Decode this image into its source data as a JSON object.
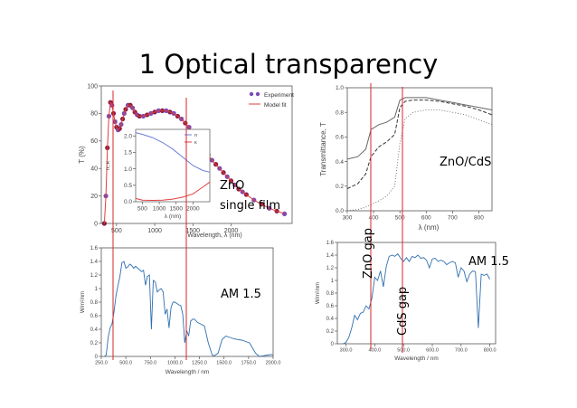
{
  "slide": {
    "title": "1 Optical transparency",
    "annotations": {
      "zno_label": "ZnO",
      "single_film": "single film",
      "am15_left": "AM 1.5",
      "zno_cds": "ZnO/CdS",
      "zno_gap": "ZnO gap",
      "cds_gap": "CdS gap",
      "am15_right": "AM 1.5"
    },
    "colors": {
      "marker": "#d62728",
      "experiment": "#7a4bb5",
      "model": "#e23c3c",
      "spectrum": "#2f6fb0"
    }
  },
  "chart_data": [
    {
      "type": "scatter",
      "id": "zno-transmittance",
      "xlabel": "Wavelength, λ (nm)",
      "ylabel": "T (%)",
      "xlim": [
        300,
        2800
      ],
      "ylim": [
        0,
        100
      ],
      "xticks": [
        "500",
        "1000",
        "1500",
        "2000"
      ],
      "yticks": [
        "0",
        "20",
        "40",
        "60",
        "80",
        "100"
      ],
      "legend": [
        "Experiment",
        "Model fit"
      ],
      "series": [
        {
          "name": "Experiment",
          "x": [
            340,
            360,
            380,
            400,
            420,
            440,
            460,
            480,
            500,
            520,
            540,
            560,
            580,
            600,
            620,
            650,
            680,
            710,
            740,
            770,
            800,
            850,
            900,
            950,
            1000,
            1050,
            1100,
            1150,
            1200,
            1250,
            1300,
            1350,
            1400,
            1450,
            1500,
            1550,
            1600,
            1650,
            1700,
            1750,
            1800,
            1850,
            1900,
            1950,
            2000,
            2050,
            2100,
            2150,
            2200,
            2300,
            2400,
            2500,
            2600,
            2700
          ],
          "y": [
            0,
            20,
            55,
            78,
            88,
            86,
            80,
            74,
            70,
            68,
            69,
            72,
            76,
            80,
            83,
            86,
            86,
            84,
            81,
            79,
            78,
            78,
            79,
            80,
            81,
            82,
            82,
            82,
            81,
            80,
            78,
            76,
            73,
            70,
            66,
            62,
            58,
            54,
            50,
            46,
            43,
            40,
            37,
            34,
            31,
            28,
            25,
            23,
            21,
            17,
            14,
            11,
            9,
            7
          ]
        },
        {
          "name": "Model fit",
          "x": [
            340,
            360,
            380,
            400,
            420,
            440,
            460,
            480,
            500,
            520,
            540,
            560,
            580,
            600,
            620,
            650,
            680,
            710,
            740,
            770,
            800,
            850,
            900,
            950,
            1000,
            1050,
            1100,
            1150,
            1200,
            1250,
            1300,
            1350,
            1400,
            1450,
            1500,
            1550,
            1600,
            1650,
            1700,
            1750,
            1800,
            1850,
            1900,
            1950,
            2000,
            2050,
            2100,
            2150,
            2200,
            2300,
            2400,
            2500,
            2600,
            2700
          ],
          "y": [
            0,
            20,
            55,
            78,
            88,
            86,
            80,
            74,
            70,
            68,
            69,
            72,
            76,
            80,
            83,
            86,
            86,
            84,
            81,
            79,
            78,
            78,
            79,
            80,
            81,
            82,
            82,
            82,
            81,
            80,
            78,
            76,
            73,
            70,
            66,
            62,
            58,
            54,
            50,
            46,
            43,
            40,
            37,
            34,
            31,
            28,
            25,
            23,
            21,
            17,
            14,
            11,
            9,
            7
          ]
        }
      ],
      "inset": {
        "xlabel": "λ (nm)",
        "ylabel": "n, κ",
        "xticks": [
          "500",
          "1000",
          "1500",
          "2000"
        ],
        "yticks": [
          "0.0",
          "0.5",
          "1.0",
          "1.5",
          "2.0"
        ],
        "legend": [
          "n",
          "κ"
        ],
        "xlim": [
          300,
          2500
        ],
        "ylim": [
          0,
          2.2
        ],
        "n": {
          "x": [
            300,
            500,
            800,
            1100,
            1400,
            1700,
            2000,
            2300,
            2500
          ],
          "y": [
            2.1,
            2.05,
            1.95,
            1.8,
            1.6,
            1.35,
            1.1,
            0.95,
            0.9
          ]
        },
        "k": {
          "x": [
            300,
            500,
            800,
            1100,
            1400,
            1700,
            2000,
            2300,
            2500
          ],
          "y": [
            0.1,
            0.05,
            0.04,
            0.05,
            0.08,
            0.14,
            0.24,
            0.45,
            0.6
          ]
        }
      }
    },
    {
      "type": "line",
      "id": "zno-cds-transmittance",
      "xlabel": "λ (nm)",
      "ylabel": "Transmittance, T",
      "xlim": [
        300,
        850
      ],
      "ylim": [
        0,
        1.0
      ],
      "xticks": [
        "300",
        "400",
        "500",
        "600",
        "700",
        "800"
      ],
      "yticks": [
        "0.0",
        "0.2",
        "0.4",
        "0.6",
        "0.8",
        "1.0"
      ],
      "series": [
        {
          "name": "solid",
          "x": [
            300,
            340,
            370,
            390,
            420,
            450,
            480,
            500,
            520,
            550,
            600,
            650,
            700,
            750,
            800,
            850
          ],
          "y": [
            0.42,
            0.44,
            0.5,
            0.66,
            0.7,
            0.72,
            0.76,
            0.9,
            0.92,
            0.92,
            0.92,
            0.9,
            0.88,
            0.86,
            0.84,
            0.82
          ]
        },
        {
          "name": "dashed",
          "x": [
            300,
            340,
            370,
            390,
            420,
            450,
            480,
            500,
            520,
            550,
            600,
            650,
            700,
            750,
            800,
            850
          ],
          "y": [
            0.18,
            0.22,
            0.3,
            0.44,
            0.52,
            0.56,
            0.62,
            0.84,
            0.89,
            0.9,
            0.9,
            0.89,
            0.87,
            0.85,
            0.82,
            0.78
          ]
        },
        {
          "name": "dotted",
          "x": [
            300,
            340,
            370,
            390,
            420,
            450,
            480,
            500,
            520,
            550,
            600,
            650,
            700,
            750,
            800,
            850
          ],
          "y": [
            0.0,
            0.01,
            0.03,
            0.05,
            0.08,
            0.12,
            0.2,
            0.55,
            0.75,
            0.8,
            0.82,
            0.82,
            0.8,
            0.78,
            0.74,
            0.7
          ]
        }
      ]
    },
    {
      "type": "line",
      "id": "am15-wide",
      "xlabel": "Wavelength / nm",
      "ylabel": "W/m²/nm",
      "xlim": [
        250,
        2000
      ],
      "ylim": [
        0,
        1.6
      ],
      "xticks": [
        "250.0",
        "500.0",
        "750.0",
        "1000.0",
        "1250.0",
        "1500.0",
        "1750.0",
        "2000.0"
      ],
      "yticks": [
        "0",
        "0.2",
        "0.4",
        "0.6",
        "0.8",
        "1",
        "1.2",
        "1.4",
        "1.6"
      ],
      "series": [
        {
          "name": "AM 1.5",
          "x": [
            280,
            300,
            320,
            340,
            360,
            380,
            400,
            420,
            440,
            460,
            480,
            500,
            520,
            540,
            560,
            580,
            600,
            620,
            640,
            660,
            680,
            700,
            720,
            740,
            760,
            780,
            800,
            820,
            840,
            860,
            880,
            900,
            920,
            940,
            960,
            980,
            1000,
            1020,
            1040,
            1060,
            1080,
            1100,
            1120,
            1140,
            1160,
            1180,
            1200,
            1230,
            1260,
            1300,
            1340,
            1380,
            1400,
            1440,
            1480,
            1520,
            1560,
            1600,
            1640,
            1680,
            1720,
            1760,
            1800,
            1820,
            1860,
            1900,
            1940,
            1980,
            2000
          ],
          "y": [
            0,
            0.02,
            0.28,
            0.42,
            0.48,
            0.66,
            0.9,
            1.05,
            1.18,
            1.38,
            1.4,
            1.3,
            1.32,
            1.36,
            1.34,
            1.3,
            1.33,
            1.3,
            1.28,
            1.25,
            1.27,
            1.05,
            1.18,
            1.2,
            0.4,
            1.12,
            1.1,
            0.95,
            0.98,
            1.0,
            0.95,
            0.62,
            0.7,
            0.42,
            0.72,
            0.8,
            0.8,
            0.78,
            0.76,
            0.75,
            0.62,
            0.2,
            0.38,
            0.3,
            0.52,
            0.55,
            0.55,
            0.5,
            0.48,
            0.45,
            0.2,
            0.02,
            0.01,
            0.05,
            0.25,
            0.3,
            0.28,
            0.26,
            0.25,
            0.24,
            0.22,
            0.2,
            0.1,
            0.05,
            0.0,
            0.01,
            0.02,
            0.03,
            0.02
          ]
        }
      ]
    },
    {
      "type": "line",
      "id": "am15-narrow",
      "xlabel": "Wavelength / nm",
      "ylabel": "W/m²/nm",
      "xlim": [
        270,
        820
      ],
      "ylim": [
        0,
        1.6
      ],
      "xticks": [
        "300.0",
        "400.0",
        "500.0",
        "600.0",
        "700.0",
        "800.0"
      ],
      "yticks": [
        "0",
        "0.2",
        "0.4",
        "0.6",
        "0.8",
        "1",
        "1.2",
        "1.4",
        "1.6"
      ],
      "series": [
        {
          "name": "AM 1.5",
          "x": [
            290,
            300,
            310,
            320,
            330,
            340,
            350,
            360,
            370,
            380,
            390,
            400,
            410,
            420,
            430,
            440,
            450,
            460,
            470,
            480,
            490,
            500,
            510,
            520,
            530,
            540,
            550,
            560,
            570,
            580,
            590,
            600,
            610,
            620,
            630,
            640,
            650,
            660,
            670,
            680,
            690,
            700,
            710,
            720,
            730,
            740,
            750,
            760,
            770,
            780,
            790,
            800
          ],
          "y": [
            0,
            0.02,
            0.1,
            0.25,
            0.45,
            0.38,
            0.48,
            0.5,
            0.6,
            0.55,
            0.72,
            1.05,
            1.0,
            1.15,
            0.9,
            1.22,
            1.38,
            1.4,
            1.38,
            1.42,
            1.35,
            1.3,
            1.36,
            1.3,
            1.38,
            1.36,
            1.4,
            1.35,
            1.36,
            1.32,
            1.2,
            1.34,
            1.35,
            1.3,
            1.32,
            1.3,
            1.25,
            1.28,
            1.3,
            1.28,
            1.05,
            1.2,
            1.15,
            0.98,
            1.1,
            1.15,
            1.14,
            0.25,
            1.1,
            1.08,
            1.1,
            1.02
          ]
        }
      ]
    }
  ]
}
